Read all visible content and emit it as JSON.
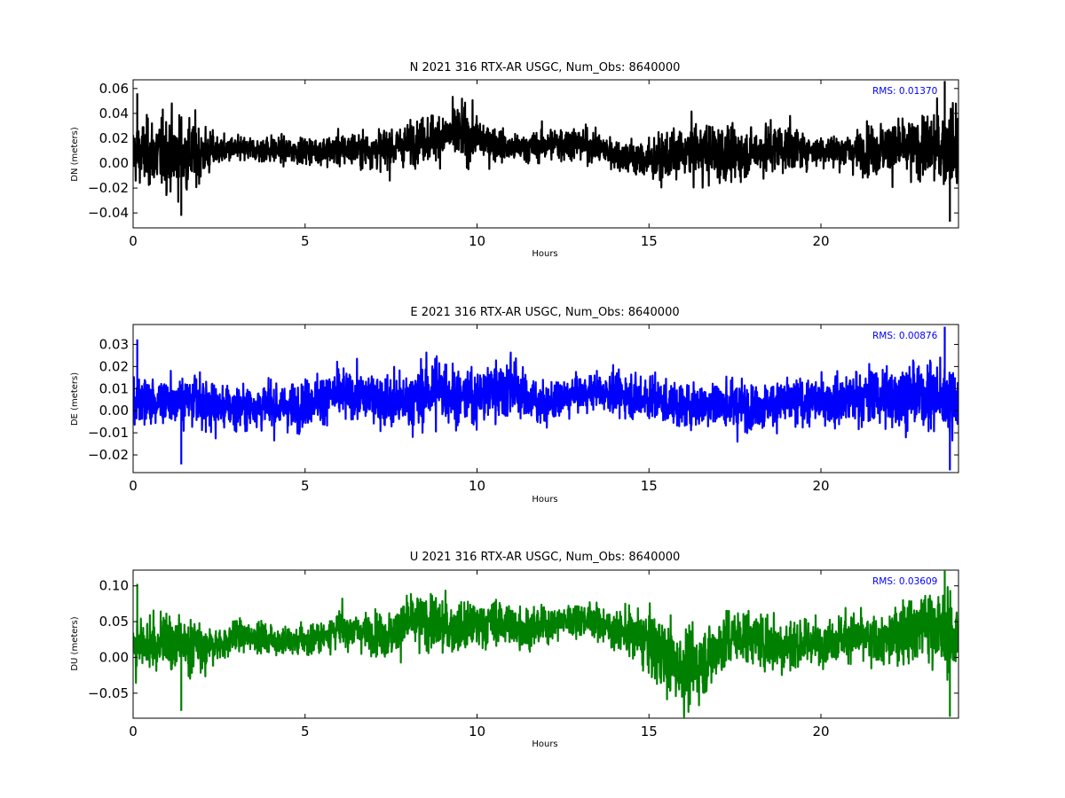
{
  "chart_data": [
    {
      "type": "line",
      "title": "N 2021 316 RTX-AR  USGC, Num_Obs: 8640000",
      "xlabel": "Hours",
      "ylabel": "DN (meters)",
      "xlim": [
        0,
        24
      ],
      "ylim": [
        -0.052,
        0.067
      ],
      "xticks": [
        0,
        5,
        10,
        15,
        20
      ],
      "yticks": [
        -0.04,
        -0.02,
        0.0,
        0.02,
        0.04,
        0.06
      ],
      "ytick_labels": [
        "−0.04",
        "−0.02",
        "0.00",
        "0.02",
        "0.04",
        "0.06"
      ],
      "grid": false,
      "annotation": "RMS:  0.01370",
      "series": [
        {
          "color": "#000000",
          "x": [
            0,
            0.5,
            1,
            1.5,
            2,
            2.5,
            3,
            3.5,
            4,
            4.5,
            5,
            5.5,
            6,
            6.5,
            7,
            7.5,
            8,
            8.5,
            9,
            9.5,
            10,
            10.5,
            11,
            11.5,
            12,
            12.5,
            13,
            13.5,
            14,
            14.5,
            15,
            15.5,
            16,
            16.5,
            17,
            17.5,
            18,
            18.5,
            19,
            19.5,
            20,
            20.5,
            21,
            21.5,
            22,
            22.5,
            23,
            23.5,
            24
          ],
          "center": [
            0.008,
            0.008,
            0.008,
            0.007,
            0.008,
            0.01,
            0.011,
            0.011,
            0.011,
            0.01,
            0.01,
            0.01,
            0.011,
            0.011,
            0.011,
            0.012,
            0.016,
            0.02,
            0.022,
            0.024,
            0.02,
            0.016,
            0.012,
            0.012,
            0.015,
            0.016,
            0.016,
            0.012,
            0.008,
            0.004,
            0.002,
            0.004,
            0.008,
            0.01,
            0.008,
            0.006,
            0.009,
            0.012,
            0.012,
            0.011,
            0.01,
            0.01,
            0.01,
            0.011,
            0.012,
            0.012,
            0.012,
            0.012,
            0.012
          ],
          "spread": [
            0.02,
            0.024,
            0.026,
            0.028,
            0.02,
            0.01,
            0.009,
            0.009,
            0.01,
            0.009,
            0.009,
            0.01,
            0.012,
            0.012,
            0.013,
            0.015,
            0.014,
            0.016,
            0.018,
            0.02,
            0.016,
            0.012,
            0.01,
            0.01,
            0.012,
            0.013,
            0.012,
            0.011,
            0.012,
            0.013,
            0.015,
            0.016,
            0.017,
            0.02,
            0.022,
            0.018,
            0.016,
            0.018,
            0.018,
            0.012,
            0.011,
            0.012,
            0.014,
            0.018,
            0.02,
            0.02,
            0.022,
            0.028,
            0.03
          ],
          "y_max": 0.066,
          "y_min": -0.047
        }
      ]
    },
    {
      "type": "line",
      "title": "E 2021 316 RTX-AR  USGC, Num_Obs: 8640000",
      "xlabel": "Hours",
      "ylabel": "DE (meters)",
      "xlim": [
        0,
        24
      ],
      "ylim": [
        -0.028,
        0.039
      ],
      "xticks": [
        0,
        5,
        10,
        15,
        20
      ],
      "yticks": [
        -0.02,
        -0.01,
        0.0,
        0.01,
        0.02,
        0.03
      ],
      "ytick_labels": [
        "−0.02",
        "−0.01",
        "0.00",
        "0.01",
        "0.02",
        "0.03"
      ],
      "grid": false,
      "annotation": "RMS:  0.00876",
      "series": [
        {
          "color": "#0000ff",
          "x": [
            0,
            0.5,
            1,
            1.5,
            2,
            2.5,
            3,
            3.5,
            4,
            4.5,
            5,
            5.5,
            6,
            6.5,
            7,
            7.5,
            8,
            8.5,
            9,
            9.5,
            10,
            10.5,
            11,
            11.5,
            12,
            12.5,
            13,
            13.5,
            14,
            14.5,
            15,
            15.5,
            16,
            16.5,
            17,
            17.5,
            18,
            18.5,
            19,
            19.5,
            20,
            20.5,
            21,
            21.5,
            22,
            22.5,
            23,
            23.5,
            24
          ],
          "center": [
            0.004,
            0.004,
            0.005,
            0.005,
            0.003,
            0.002,
            0.002,
            0.002,
            0.002,
            0.002,
            0.003,
            0.006,
            0.007,
            0.007,
            0.006,
            0.004,
            0.004,
            0.008,
            0.01,
            0.006,
            0.006,
            0.01,
            0.012,
            0.005,
            0.003,
            0.005,
            0.008,
            0.009,
            0.008,
            0.007,
            0.006,
            0.004,
            0.002,
            0.003,
            0.004,
            0.002,
            0.002,
            0.003,
            0.004,
            0.004,
            0.004,
            0.005,
            0.006,
            0.006,
            0.007,
            0.007,
            0.007,
            0.006,
            0.005
          ],
          "spread": [
            0.009,
            0.009,
            0.01,
            0.01,
            0.01,
            0.009,
            0.009,
            0.009,
            0.009,
            0.009,
            0.009,
            0.01,
            0.01,
            0.01,
            0.01,
            0.012,
            0.011,
            0.013,
            0.013,
            0.01,
            0.01,
            0.012,
            0.013,
            0.009,
            0.007,
            0.007,
            0.007,
            0.007,
            0.008,
            0.009,
            0.009,
            0.009,
            0.009,
            0.01,
            0.01,
            0.01,
            0.009,
            0.009,
            0.01,
            0.009,
            0.009,
            0.01,
            0.011,
            0.012,
            0.012,
            0.013,
            0.013,
            0.013,
            0.013
          ],
          "y_max": 0.038,
          "y_min": -0.027
        }
      ]
    },
    {
      "type": "line",
      "title": "U 2021 316 RTX-AR  USGC, Num_Obs: 8640000",
      "xlabel": "Hours",
      "ylabel": "DU (meters)",
      "xlim": [
        0,
        24
      ],
      "ylim": [
        -0.085,
        0.122
      ],
      "xticks": [
        0,
        5,
        10,
        15,
        20
      ],
      "yticks": [
        -0.05,
        0.0,
        0.05,
        0.1
      ],
      "ytick_labels": [
        "−0.05",
        "0.00",
        "0.05",
        "0.10"
      ],
      "grid": false,
      "annotation": "RMS:  0.03609",
      "series": [
        {
          "color": "#008000",
          "x": [
            0,
            0.5,
            1,
            1.5,
            2,
            2.5,
            3,
            3.5,
            4,
            4.5,
            5,
            5.5,
            6,
            6.5,
            7,
            7.5,
            8,
            8.5,
            9,
            9.5,
            10,
            10.5,
            11,
            11.5,
            12,
            12.5,
            13,
            13.5,
            14,
            14.5,
            15,
            15.5,
            16,
            16.5,
            17,
            17.5,
            18,
            18.5,
            19,
            19.5,
            20,
            20.5,
            21,
            21.5,
            22,
            22.5,
            23,
            23.5,
            24
          ],
          "center": [
            0.018,
            0.018,
            0.02,
            0.018,
            0.012,
            0.018,
            0.03,
            0.03,
            0.025,
            0.022,
            0.024,
            0.03,
            0.04,
            0.038,
            0.034,
            0.03,
            0.05,
            0.05,
            0.042,
            0.04,
            0.045,
            0.05,
            0.045,
            0.04,
            0.045,
            0.05,
            0.055,
            0.05,
            0.038,
            0.032,
            0.02,
            0.0,
            -0.015,
            -0.01,
            0.015,
            0.03,
            0.028,
            0.02,
            0.018,
            0.02,
            0.022,
            0.028,
            0.03,
            0.02,
            0.025,
            0.04,
            0.05,
            0.035,
            0.03
          ],
          "spread": [
            0.03,
            0.032,
            0.035,
            0.035,
            0.028,
            0.02,
            0.02,
            0.018,
            0.018,
            0.018,
            0.018,
            0.02,
            0.022,
            0.022,
            0.024,
            0.03,
            0.032,
            0.034,
            0.035,
            0.03,
            0.028,
            0.028,
            0.028,
            0.026,
            0.022,
            0.02,
            0.02,
            0.02,
            0.024,
            0.03,
            0.038,
            0.045,
            0.048,
            0.045,
            0.04,
            0.035,
            0.032,
            0.04,
            0.038,
            0.028,
            0.026,
            0.028,
            0.03,
            0.032,
            0.032,
            0.04,
            0.045,
            0.048,
            0.045
          ],
          "y_max": 0.121,
          "y_min": -0.083
        }
      ]
    }
  ],
  "colors": {
    "axes": "#000000",
    "annotation": "#0000ff",
    "background": "#ffffff"
  }
}
